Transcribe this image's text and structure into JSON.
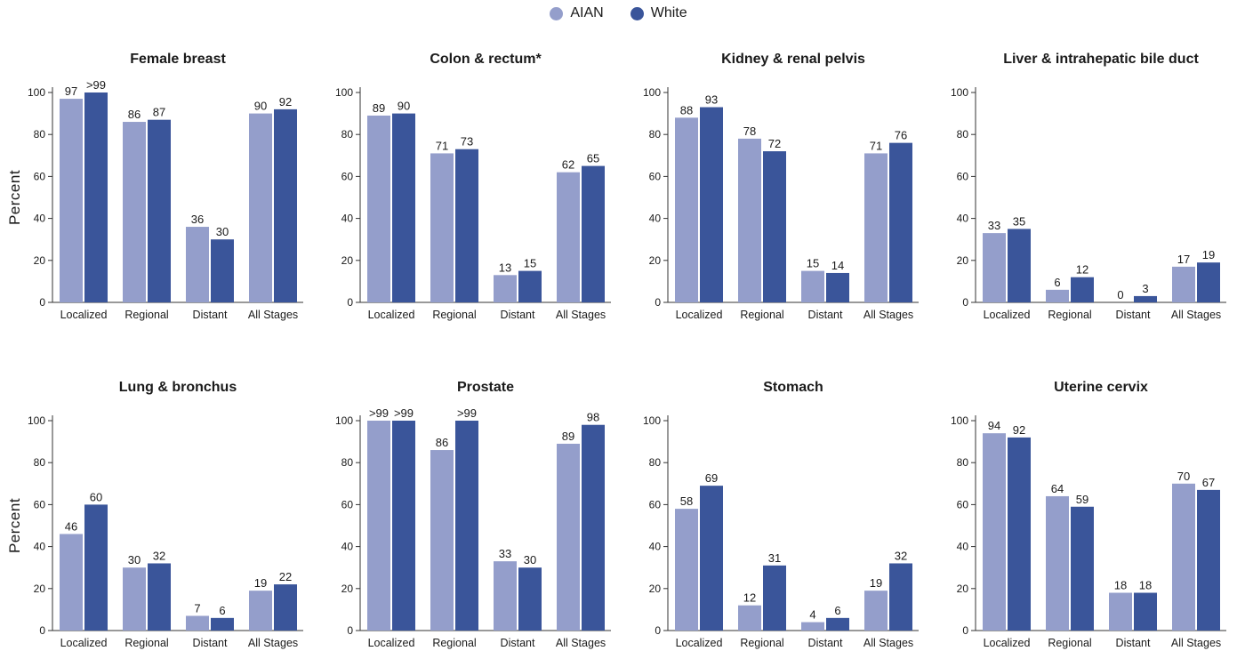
{
  "legend": {
    "items": [
      {
        "label": "AIAN",
        "color": "#949ecb"
      },
      {
        "label": "White",
        "color": "#3a559a"
      }
    ]
  },
  "y_axis_label": "Percent",
  "chart_data": [
    {
      "type": "bar",
      "title": "Female breast",
      "categories": [
        "Localized",
        "Regional",
        "Distant",
        "All Stages"
      ],
      "ylim": [
        0,
        100
      ],
      "yticks": [
        0,
        20,
        40,
        60,
        80,
        100
      ],
      "series": [
        {
          "name": "AIAN",
          "values": [
            97,
            86,
            36,
            90
          ],
          "labels": [
            "97",
            "86",
            "36",
            "90"
          ]
        },
        {
          "name": "White",
          "values": [
            100,
            87,
            30,
            92
          ],
          "labels": [
            ">99",
            "87",
            "30",
            "92"
          ]
        }
      ]
    },
    {
      "type": "bar",
      "title": "Colon & rectum*",
      "categories": [
        "Localized",
        "Regional",
        "Distant",
        "All Stages"
      ],
      "ylim": [
        0,
        100
      ],
      "yticks": [
        0,
        20,
        40,
        60,
        80,
        100
      ],
      "series": [
        {
          "name": "AIAN",
          "values": [
            89,
            71,
            13,
            62
          ],
          "labels": [
            "89",
            "71",
            "13",
            "62"
          ]
        },
        {
          "name": "White",
          "values": [
            90,
            73,
            15,
            65
          ],
          "labels": [
            "90",
            "73",
            "15",
            "65"
          ]
        }
      ]
    },
    {
      "type": "bar",
      "title": "Kidney & renal pelvis",
      "categories": [
        "Localized",
        "Regional",
        "Distant",
        "All Stages"
      ],
      "ylim": [
        0,
        100
      ],
      "yticks": [
        0,
        20,
        40,
        60,
        80,
        100
      ],
      "series": [
        {
          "name": "AIAN",
          "values": [
            88,
            78,
            15,
            71
          ],
          "labels": [
            "88",
            "78",
            "15",
            "71"
          ]
        },
        {
          "name": "White",
          "values": [
            93,
            72,
            14,
            76
          ],
          "labels": [
            "93",
            "72",
            "14",
            "76"
          ]
        }
      ]
    },
    {
      "type": "bar",
      "title": "Liver & intrahepatic bile duct",
      "categories": [
        "Localized",
        "Regional",
        "Distant",
        "All Stages"
      ],
      "ylim": [
        0,
        100
      ],
      "yticks": [
        0,
        20,
        40,
        60,
        80,
        100
      ],
      "series": [
        {
          "name": "AIAN",
          "values": [
            33,
            6,
            0,
            17
          ],
          "labels": [
            "33",
            "6",
            "0",
            "17"
          ]
        },
        {
          "name": "White",
          "values": [
            35,
            12,
            3,
            19
          ],
          "labels": [
            "35",
            "12",
            "3",
            "19"
          ]
        }
      ]
    },
    {
      "type": "bar",
      "title": "Lung & bronchus",
      "categories": [
        "Localized",
        "Regional",
        "Distant",
        "All Stages"
      ],
      "ylim": [
        0,
        100
      ],
      "yticks": [
        0,
        20,
        40,
        60,
        80,
        100
      ],
      "series": [
        {
          "name": "AIAN",
          "values": [
            46,
            30,
            7,
            19
          ],
          "labels": [
            "46",
            "30",
            "7",
            "19"
          ]
        },
        {
          "name": "White",
          "values": [
            60,
            32,
            6,
            22
          ],
          "labels": [
            "60",
            "32",
            "6",
            "22"
          ]
        }
      ]
    },
    {
      "type": "bar",
      "title": "Prostate",
      "categories": [
        "Localized",
        "Regional",
        "Distant",
        "All Stages"
      ],
      "ylim": [
        0,
        100
      ],
      "yticks": [
        0,
        20,
        40,
        60,
        80,
        100
      ],
      "series": [
        {
          "name": "AIAN",
          "values": [
            100,
            86,
            33,
            89
          ],
          "labels": [
            ">99",
            "86",
            "33",
            "89"
          ]
        },
        {
          "name": "White",
          "values": [
            100,
            100,
            30,
            98
          ],
          "labels": [
            ">99",
            ">99",
            "30",
            "98"
          ]
        }
      ]
    },
    {
      "type": "bar",
      "title": "Stomach",
      "categories": [
        "Localized",
        "Regional",
        "Distant",
        "All Stages"
      ],
      "ylim": [
        0,
        100
      ],
      "yticks": [
        0,
        20,
        40,
        60,
        80,
        100
      ],
      "series": [
        {
          "name": "AIAN",
          "values": [
            58,
            12,
            4,
            19
          ],
          "labels": [
            "58",
            "12",
            "4",
            "19"
          ]
        },
        {
          "name": "White",
          "values": [
            69,
            31,
            6,
            32
          ],
          "labels": [
            "69",
            "31",
            "6",
            "32"
          ]
        }
      ]
    },
    {
      "type": "bar",
      "title": "Uterine cervix",
      "categories": [
        "Localized",
        "Regional",
        "Distant",
        "All Stages"
      ],
      "ylim": [
        0,
        100
      ],
      "yticks": [
        0,
        20,
        40,
        60,
        80,
        100
      ],
      "series": [
        {
          "name": "AIAN",
          "values": [
            94,
            64,
            18,
            70
          ],
          "labels": [
            "94",
            "64",
            "18",
            "70"
          ]
        },
        {
          "name": "White",
          "values": [
            92,
            59,
            18,
            67
          ],
          "labels": [
            "92",
            "59",
            "18",
            "67"
          ]
        }
      ]
    }
  ]
}
